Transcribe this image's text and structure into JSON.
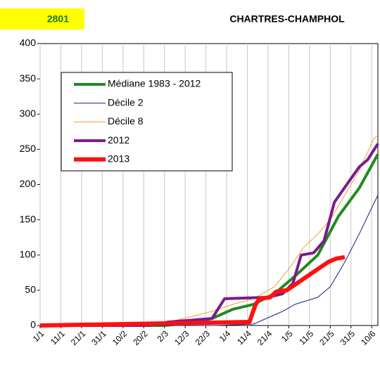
{
  "chart_data": {
    "type": "line",
    "code": "2801",
    "title": "CHARTRES-CHAMPHOL",
    "xlim": [
      0,
      163
    ],
    "xticks": [
      {
        "value": 0,
        "label": "1/1"
      },
      {
        "value": 10,
        "label": "11/1"
      },
      {
        "value": 20,
        "label": "21/1"
      },
      {
        "value": 30,
        "label": "31/1"
      },
      {
        "value": 40,
        "label": "10/2"
      },
      {
        "value": 50,
        "label": "20/2"
      },
      {
        "value": 60,
        "label": "2/3"
      },
      {
        "value": 70,
        "label": "12/3"
      },
      {
        "value": 80,
        "label": "22/3"
      },
      {
        "value": 90,
        "label": "1/4"
      },
      {
        "value": 100,
        "label": "11/4"
      },
      {
        "value": 110,
        "label": "21/4"
      },
      {
        "value": 120,
        "label": "1/5"
      },
      {
        "value": 130,
        "label": "11/5"
      },
      {
        "value": 140,
        "label": "21/5"
      },
      {
        "value": 150,
        "label": "31/5"
      },
      {
        "value": 160,
        "label": "10/6"
      }
    ],
    "ylim": [
      0,
      400
    ],
    "yticks": [
      0,
      50,
      100,
      150,
      200,
      250,
      300,
      350,
      400
    ],
    "grid": "x",
    "series": [
      {
        "name": "Médiane 1983 - 2012",
        "color": "#1e8c1e",
        "line_width": 4,
        "x": [
          0,
          60,
          70,
          83,
          93,
          103,
          113,
          123,
          134,
          144,
          154,
          163
        ],
        "values": [
          0,
          0,
          3,
          10,
          23,
          30,
          45,
          70,
          100,
          155,
          195,
          243
        ]
      },
      {
        "name": "Décile 2",
        "color": "#1a1a80",
        "line_width": 1,
        "x": [
          0,
          85,
          103,
          113,
          117,
          123,
          134,
          140,
          147,
          154,
          163
        ],
        "values": [
          0,
          0,
          2,
          15,
          20,
          30,
          40,
          55,
          90,
          130,
          185
        ]
      },
      {
        "name": "Décile 8",
        "color": "#f0a020",
        "line_width": 1,
        "x": [
          0,
          49,
          62,
          72,
          83,
          93,
          103,
          113,
          120,
          127,
          134,
          140,
          147,
          154,
          161,
          163
        ],
        "values": [
          0,
          2,
          5,
          12,
          20,
          30,
          38,
          55,
          80,
          110,
          130,
          150,
          185,
          220,
          265,
          270
        ]
      },
      {
        "name": "2012",
        "color": "#7a1a8c",
        "line_width": 4,
        "x": [
          0,
          52,
          62,
          83,
          89,
          110,
          117,
          122,
          126,
          132,
          137,
          142,
          148,
          154,
          158,
          163
        ],
        "values": [
          0,
          0,
          5,
          10,
          38,
          40,
          45,
          60,
          100,
          103,
          120,
          175,
          200,
          225,
          235,
          258
        ]
      },
      {
        "name": "2013",
        "color": "#ff1010",
        "line_width": 6,
        "x": [
          0,
          101,
          104,
          106,
          111,
          114,
          119,
          124,
          129,
          134,
          139,
          143,
          147
        ],
        "values": [
          0,
          5,
          30,
          38,
          40,
          48,
          50,
          60,
          70,
          80,
          90,
          95,
          97
        ]
      }
    ]
  }
}
